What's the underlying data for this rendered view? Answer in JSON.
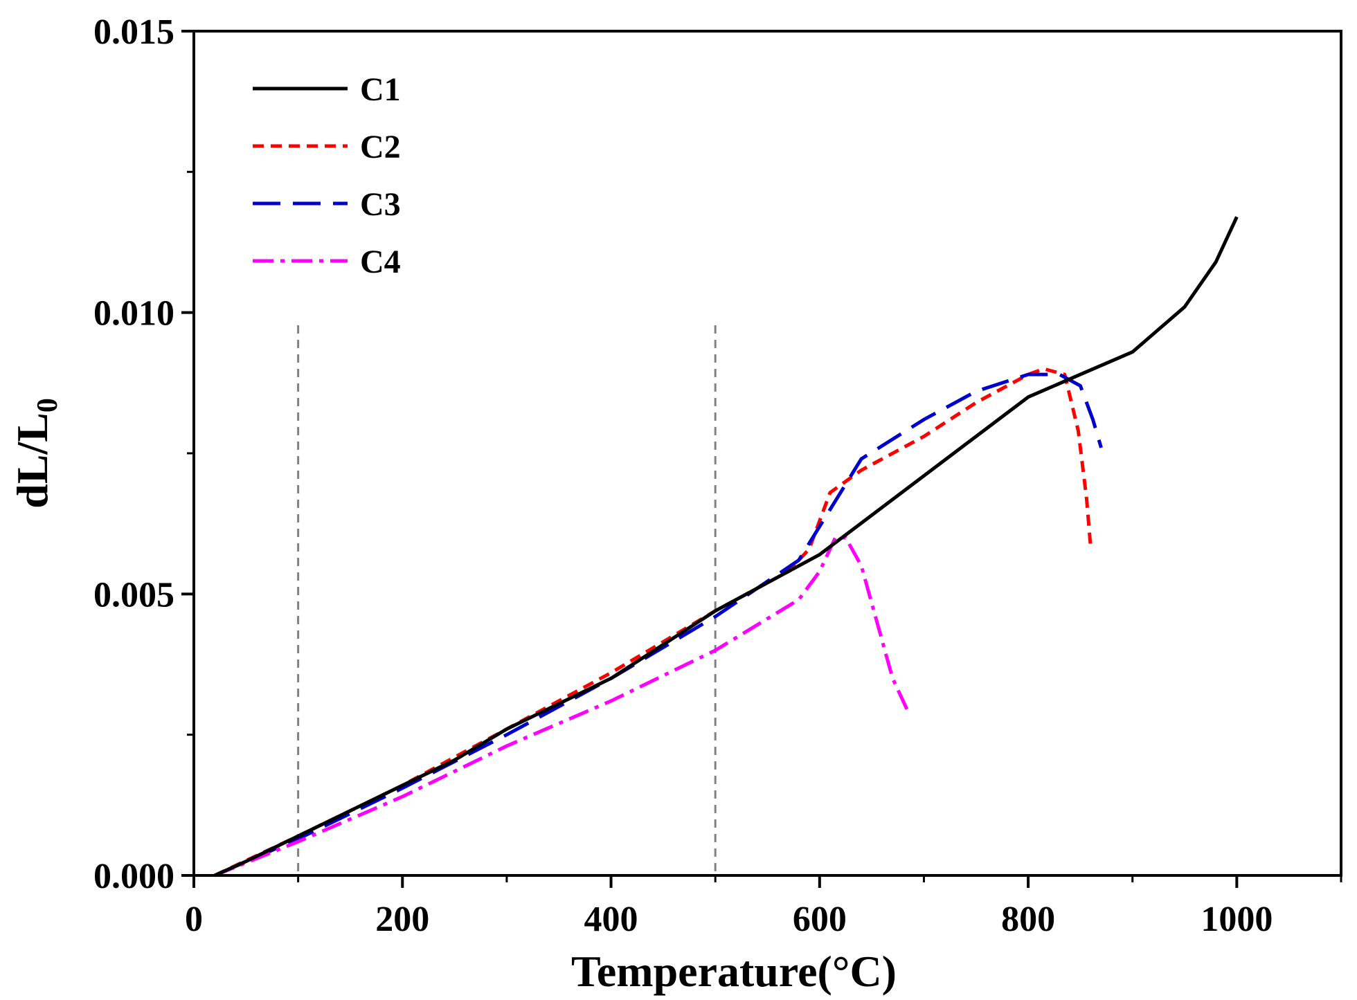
{
  "chart_data": {
    "type": "line",
    "xlabel": "Temperature(°C)",
    "ylabel_main": "dL/L",
    "ylabel_sub": "0",
    "xlim": [
      0,
      1100
    ],
    "ylim": [
      0,
      0.015
    ],
    "x_ticks": [
      0,
      200,
      400,
      600,
      800,
      1000
    ],
    "x_tick_labels": [
      "0",
      "200",
      "400",
      "600",
      "800",
      "1000"
    ],
    "x_minor_ticks": [
      100,
      300,
      500,
      700,
      900,
      1100
    ],
    "y_ticks": [
      0,
      0.005,
      0.01,
      0.015
    ],
    "y_tick_labels": [
      "0.000",
      "0.005",
      "0.010",
      "0.015"
    ],
    "y_minor_ticks": [
      0.0025,
      0.0075,
      0.0125
    ],
    "reference_lines": [
      100,
      500
    ],
    "legend_position": "top-left",
    "series": [
      {
        "name": "C1",
        "color": "#000000",
        "dash": "solid",
        "points": [
          [
            20,
            0
          ],
          [
            50,
            0.00025
          ],
          [
            100,
            0.0007
          ],
          [
            150,
            0.00115
          ],
          [
            200,
            0.0016
          ],
          [
            250,
            0.00205
          ],
          [
            300,
            0.0026
          ],
          [
            350,
            0.00305
          ],
          [
            400,
            0.0035
          ],
          [
            450,
            0.0041
          ],
          [
            500,
            0.0047
          ],
          [
            550,
            0.0052
          ],
          [
            600,
            0.0057
          ],
          [
            650,
            0.0064
          ],
          [
            700,
            0.0071
          ],
          [
            750,
            0.0078
          ],
          [
            800,
            0.0085
          ],
          [
            850,
            0.0089
          ],
          [
            900,
            0.0093
          ],
          [
            950,
            0.0101
          ],
          [
            980,
            0.0109
          ],
          [
            1000,
            0.0117
          ]
        ]
      },
      {
        "name": "C2",
        "color": "#ff0000",
        "dash": "short-dash",
        "points": [
          [
            20,
            0
          ],
          [
            100,
            0.0007
          ],
          [
            200,
            0.0016
          ],
          [
            300,
            0.0026
          ],
          [
            400,
            0.0036
          ],
          [
            500,
            0.0047
          ],
          [
            570,
            0.0054
          ],
          [
            590,
            0.0058
          ],
          [
            610,
            0.0068
          ],
          [
            640,
            0.0072
          ],
          [
            700,
            0.0078
          ],
          [
            750,
            0.0084
          ],
          [
            800,
            0.0089
          ],
          [
            815,
            0.009
          ],
          [
            835,
            0.0089
          ],
          [
            848,
            0.0079
          ],
          [
            856,
            0.0067
          ],
          [
            860,
            0.0058
          ]
        ]
      },
      {
        "name": "C3",
        "color": "#0000cc",
        "dash": "long-dash",
        "points": [
          [
            20,
            0
          ],
          [
            100,
            0.00065
          ],
          [
            200,
            0.00155
          ],
          [
            300,
            0.0025
          ],
          [
            400,
            0.0035
          ],
          [
            500,
            0.0046
          ],
          [
            580,
            0.0056
          ],
          [
            610,
            0.0065
          ],
          [
            640,
            0.0074
          ],
          [
            700,
            0.0081
          ],
          [
            750,
            0.0086
          ],
          [
            800,
            0.0089
          ],
          [
            830,
            0.0089
          ],
          [
            850,
            0.0087
          ],
          [
            862,
            0.0081
          ],
          [
            870,
            0.0076
          ]
        ]
      },
      {
        "name": "C4",
        "color": "#ff00ff",
        "dash": "dash-dot",
        "points": [
          [
            20,
            0
          ],
          [
            100,
            0.0006
          ],
          [
            200,
            0.0014
          ],
          [
            300,
            0.0023
          ],
          [
            400,
            0.0031
          ],
          [
            500,
            0.004
          ],
          [
            580,
            0.0049
          ],
          [
            600,
            0.0054
          ],
          [
            615,
            0.006
          ],
          [
            625,
            0.006
          ],
          [
            640,
            0.0055
          ],
          [
            655,
            0.0045
          ],
          [
            670,
            0.0035
          ],
          [
            685,
            0.0029
          ]
        ]
      }
    ]
  }
}
